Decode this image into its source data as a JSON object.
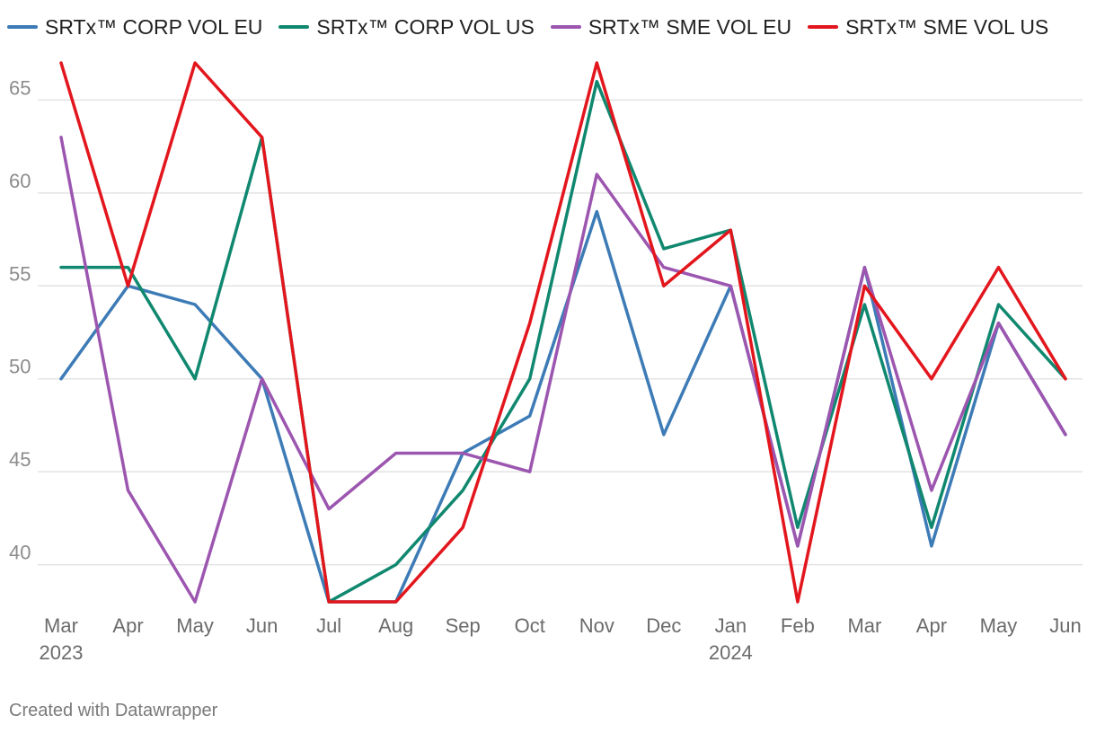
{
  "chart_data": {
    "type": "line",
    "title": "",
    "xlabel": "",
    "ylabel": "",
    "categories": [
      "Mar",
      "Apr",
      "May",
      "Jun",
      "Jul",
      "Aug",
      "Sep",
      "Oct",
      "Nov",
      "Dec",
      "Jan",
      "Feb",
      "Mar",
      "Apr",
      "May",
      "Jun"
    ],
    "year_labels": [
      {
        "index": 0,
        "label": "2023"
      },
      {
        "index": 10,
        "label": "2024"
      }
    ],
    "yticks": [
      40,
      45,
      50,
      55,
      60,
      65
    ],
    "ylim": [
      38,
      67
    ],
    "grid": true,
    "legend_position": "top-left",
    "series": [
      {
        "name": "SRTx™ CORP VOL EU",
        "color": "#3d7bb6",
        "values": [
          50,
          55,
          54,
          50,
          38,
          38,
          46,
          48,
          59,
          47,
          55,
          41,
          56,
          41,
          53,
          47
        ]
      },
      {
        "name": "SRTx™ CORP VOL US",
        "color": "#10886f",
        "values": [
          56,
          56,
          50,
          63,
          38,
          40,
          44,
          50,
          66,
          57,
          58,
          42,
          54,
          42,
          54,
          50
        ]
      },
      {
        "name": "SRTx™ SME VOL EU",
        "color": "#9c56b0",
        "values": [
          63,
          44,
          38,
          50,
          43,
          46,
          46,
          45,
          61,
          56,
          55,
          41,
          56,
          44,
          53,
          47
        ]
      },
      {
        "name": "SRTx™ SME VOL US",
        "color": "#e3161d",
        "values": [
          67,
          55,
          67,
          63,
          38,
          38,
          42,
          53,
          67,
          55,
          58,
          38,
          55,
          50,
          56,
          50
        ]
      }
    ]
  },
  "footer": {
    "credit": "Created with Datawrapper"
  }
}
